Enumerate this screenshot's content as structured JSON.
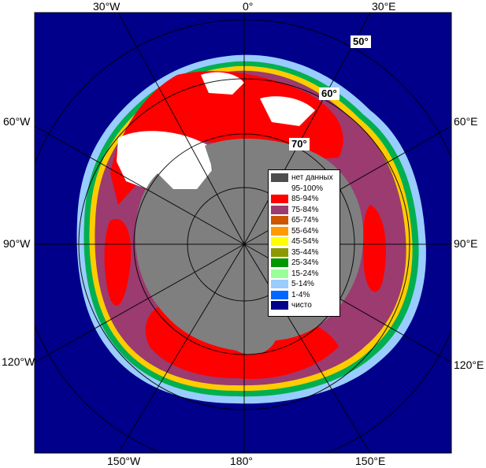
{
  "map": {
    "colors": {
      "ocean_open": "#00008b",
      "land": "#7f7f7f",
      "no_data": "#4d4d4d",
      "grid": "#000000",
      "ice_95_100": "#ffffff",
      "ice_85_94": "#ff0000",
      "ice_75_84": "#9b3b6f"
    },
    "longitude_labels": {
      "top": [
        "30°W",
        "0°",
        "30°E"
      ],
      "bottom": [
        "150°W",
        "180°",
        "150°E"
      ],
      "left": [
        "60°W",
        "90°W",
        "120°W"
      ],
      "right": [
        "60°E",
        "90°E",
        "120°E"
      ]
    },
    "latitude_labels": [
      "50°",
      "60°",
      "70°"
    ]
  },
  "legend": {
    "items": [
      {
        "label": "нет данных",
        "color": "#4d4d4d"
      },
      {
        "label": "95-100%",
        "color": "#ffffff"
      },
      {
        "label": "85-94%",
        "color": "#ff0000"
      },
      {
        "label": "75-84%",
        "color": "#9b3b6f"
      },
      {
        "label": "65-74%",
        "color": "#cc5500"
      },
      {
        "label": "55-64%",
        "color": "#ff9900"
      },
      {
        "label": "45-54%",
        "color": "#ffff00"
      },
      {
        "label": "35-44%",
        "color": "#8c9900"
      },
      {
        "label": "25-34%",
        "color": "#009900"
      },
      {
        "label": "15-24%",
        "color": "#99ff99"
      },
      {
        "label": "5-14%",
        "color": "#99ccff"
      },
      {
        "label": "1-4%",
        "color": "#0066ff"
      },
      {
        "label": "чисто",
        "color": "#00008b"
      }
    ]
  }
}
